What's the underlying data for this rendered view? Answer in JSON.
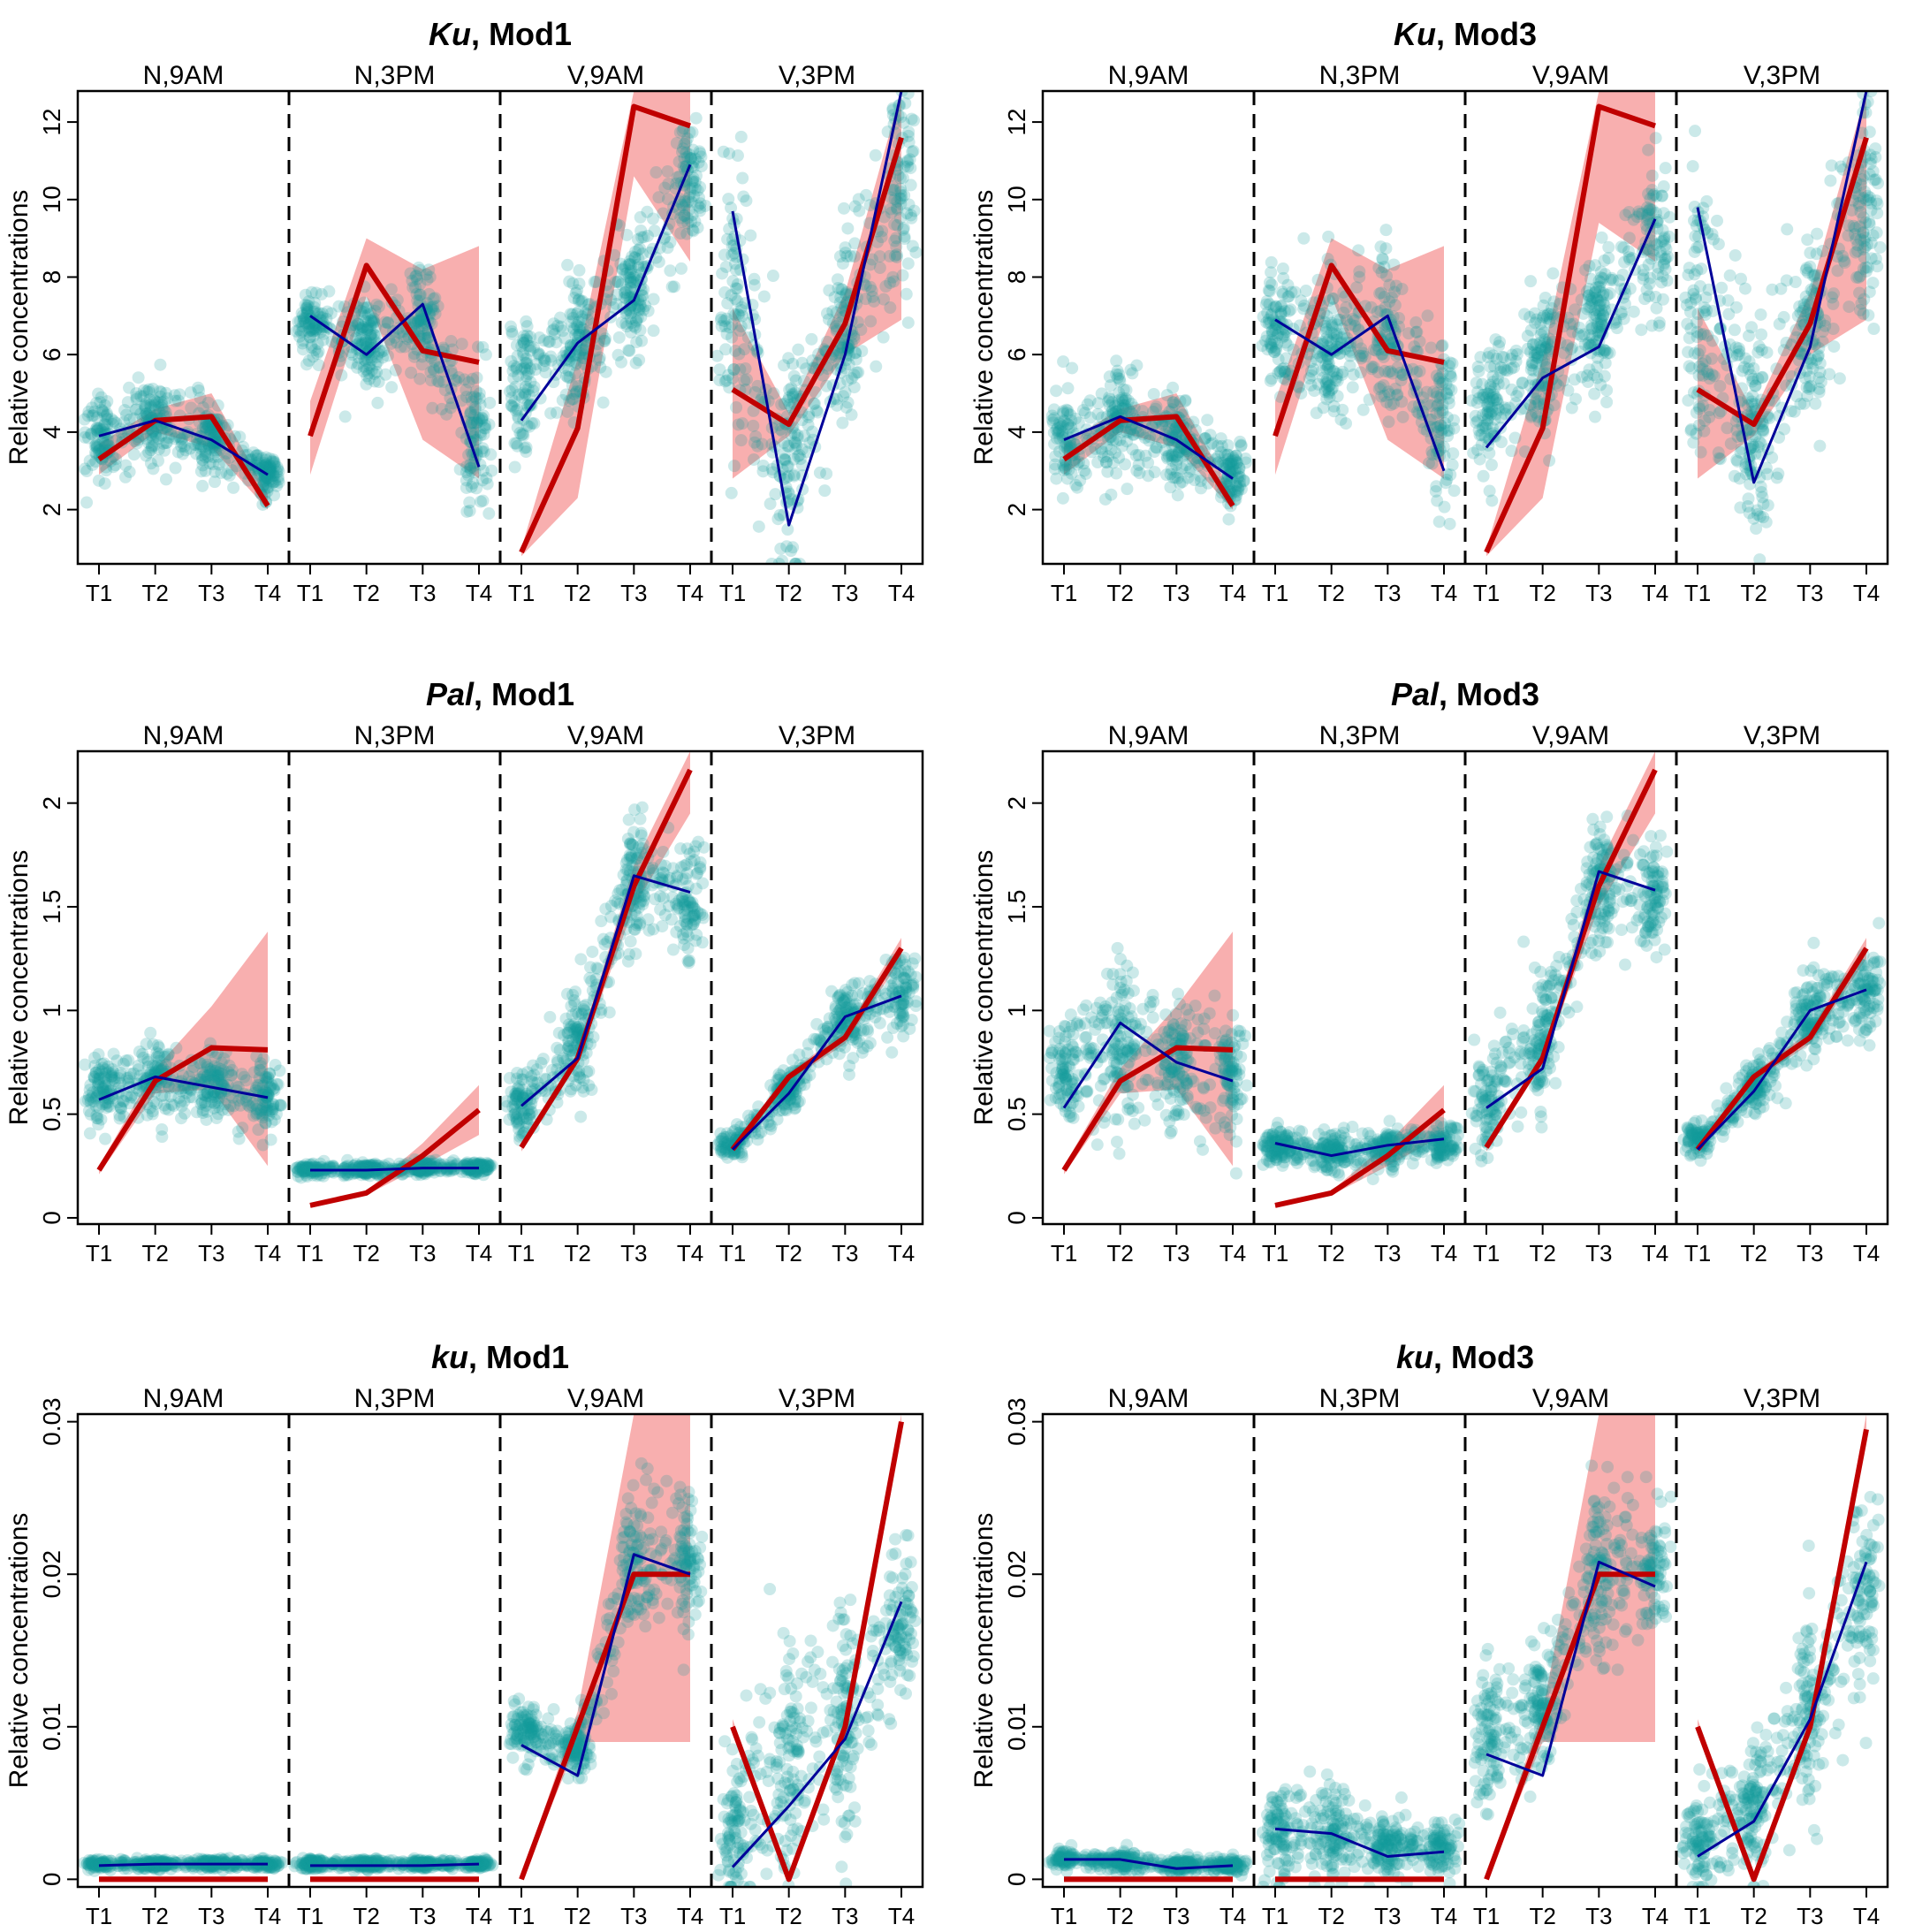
{
  "figure": {
    "colors": {
      "observed": "#c00000",
      "band": "#f7a1a1",
      "model": "#000099",
      "points": "#139a9a"
    },
    "panel_labels": [
      "N,9AM",
      "N,3PM",
      "V,9AM",
      "V,3PM"
    ],
    "tick_labels_x": [
      "T1",
      "T2",
      "T3",
      "T4"
    ]
  },
  "chart_data": [
    {
      "type": "line",
      "gene": "Ku",
      "title_rest": ", Mod1",
      "ylabel": "Relative concentrations",
      "ylim": [
        0.6,
        12.8
      ],
      "yticks": [
        2,
        4,
        6,
        8,
        10,
        12
      ],
      "ytick_labels": [
        "2",
        "4",
        "6",
        "8",
        "10",
        "12"
      ],
      "panels": [
        {
          "label": "N,9AM",
          "observed": [
            3.3,
            4.3,
            4.4,
            2.1
          ],
          "band_lower": [
            2.9,
            4.0,
            3.6,
            2.0
          ],
          "band_upper": [
            3.7,
            4.6,
            5.0,
            2.4
          ],
          "model": [
            3.9,
            4.3,
            3.8,
            2.9
          ],
          "points_center": [
            3.9,
            4.3,
            3.8,
            2.9
          ],
          "points_spread": [
            0.7,
            0.7,
            0.6,
            0.4
          ]
        },
        {
          "label": "N,3PM",
          "observed": [
            3.9,
            8.3,
            6.1,
            5.8
          ],
          "band_lower": [
            2.9,
            7.5,
            3.8,
            2.8
          ],
          "band_upper": [
            4.8,
            9.0,
            8.2,
            8.8
          ],
          "model": [
            7.0,
            6.0,
            7.3,
            3.1
          ],
          "points_center": [
            6.8,
            6.2,
            6.8,
            3.8
          ],
          "points_spread": [
            0.6,
            0.8,
            1.0,
            1.3
          ]
        },
        {
          "label": "V,9AM",
          "observed": [
            0.9,
            4.1,
            12.4,
            11.9
          ],
          "band_lower": [
            0.8,
            2.3,
            10.6,
            8.4
          ],
          "band_upper": [
            1.0,
            5.9,
            12.8,
            12.8
          ],
          "model": [
            4.3,
            6.3,
            7.4,
            10.9
          ],
          "points_center": [
            5.2,
            6.4,
            7.6,
            10.4
          ],
          "points_spread": [
            1.1,
            1.2,
            1.1,
            1.1
          ]
        },
        {
          "label": "V,3PM",
          "observed": [
            5.1,
            4.2,
            6.8,
            11.6
          ],
          "band_lower": [
            2.8,
            3.9,
            6.0,
            6.9
          ],
          "band_upper": [
            7.2,
            4.5,
            7.6,
            12.8
          ],
          "model": [
            9.7,
            1.6,
            6.0,
            12.8
          ],
          "points_center": [
            7.5,
            3.5,
            6.6,
            10.2
          ],
          "points_spread": [
            2.5,
            2.0,
            1.5,
            1.8
          ]
        }
      ]
    },
    {
      "type": "line",
      "gene": "Ku",
      "title_rest": ", Mod3",
      "ylabel": "Relative concentrations",
      "ylim": [
        0.6,
        12.8
      ],
      "yticks": [
        2,
        4,
        6,
        8,
        10,
        12
      ],
      "ytick_labels": [
        "2",
        "4",
        "6",
        "8",
        "10",
        "12"
      ],
      "panels": [
        {
          "label": "N,9AM",
          "observed": [
            3.3,
            4.3,
            4.4,
            2.1
          ],
          "band_lower": [
            2.9,
            4.0,
            3.6,
            2.0
          ],
          "band_upper": [
            3.7,
            4.6,
            5.0,
            2.4
          ],
          "model": [
            3.8,
            4.4,
            3.8,
            2.8
          ],
          "points_center": [
            3.8,
            4.3,
            3.8,
            2.9
          ],
          "points_spread": [
            0.8,
            0.8,
            0.7,
            0.5
          ]
        },
        {
          "label": "N,3PM",
          "observed": [
            3.9,
            8.3,
            6.1,
            5.8
          ],
          "band_lower": [
            2.9,
            7.5,
            3.8,
            2.8
          ],
          "band_upper": [
            4.8,
            9.0,
            8.2,
            8.8
          ],
          "model": [
            6.9,
            6.0,
            7.0,
            3.0
          ],
          "points_center": [
            6.8,
            6.2,
            6.5,
            4.2
          ],
          "points_spread": [
            1.0,
            1.2,
            1.3,
            1.5
          ]
        },
        {
          "label": "V,9AM",
          "observed": [
            0.9,
            4.1,
            12.4,
            11.9
          ],
          "band_lower": [
            0.8,
            2.3,
            9.4,
            8.4
          ],
          "band_upper": [
            1.0,
            5.9,
            12.8,
            12.8
          ],
          "model": [
            3.6,
            5.4,
            6.2,
            9.5
          ],
          "points_center": [
            4.5,
            5.8,
            6.8,
            9.0
          ],
          "points_spread": [
            1.0,
            1.2,
            1.2,
            1.3
          ]
        },
        {
          "label": "V,3PM",
          "observed": [
            5.1,
            4.2,
            6.8,
            11.6
          ],
          "band_lower": [
            2.8,
            3.9,
            6.0,
            6.9
          ],
          "band_upper": [
            7.2,
            4.5,
            7.6,
            12.8
          ],
          "model": [
            9.8,
            2.7,
            6.2,
            12.8
          ],
          "points_center": [
            7.0,
            4.0,
            6.5,
            9.8
          ],
          "points_spread": [
            2.5,
            1.8,
            1.5,
            1.8
          ]
        }
      ]
    },
    {
      "type": "line",
      "gene": "Pal",
      "title_rest": ", Mod1",
      "ylabel": "Relative concentrations",
      "ylim": [
        -0.03,
        2.25
      ],
      "yticks": [
        0,
        0.5,
        1,
        1.5,
        2
      ],
      "ytick_labels": [
        "0",
        "0.5",
        "1",
        "1.5",
        "2"
      ],
      "panels": [
        {
          "label": "N,9AM",
          "observed": [
            0.23,
            0.66,
            0.82,
            0.81
          ],
          "band_lower": [
            0.21,
            0.6,
            0.62,
            0.25
          ],
          "band_upper": [
            0.25,
            0.72,
            1.02,
            1.38
          ],
          "model": [
            0.57,
            0.68,
            0.63,
            0.58
          ],
          "points_center": [
            0.62,
            0.68,
            0.63,
            0.58
          ],
          "points_spread": [
            0.1,
            0.12,
            0.1,
            0.1
          ]
        },
        {
          "label": "N,3PM",
          "observed": [
            0.06,
            0.12,
            0.3,
            0.52
          ],
          "band_lower": [
            0.05,
            0.11,
            0.25,
            0.4
          ],
          "band_upper": [
            0.07,
            0.13,
            0.36,
            0.64
          ],
          "model": [
            0.23,
            0.23,
            0.24,
            0.24
          ],
          "points_center": [
            0.23,
            0.23,
            0.24,
            0.24
          ],
          "points_spread": [
            0.02,
            0.02,
            0.02,
            0.02
          ]
        },
        {
          "label": "V,9AM",
          "observed": [
            0.34,
            0.77,
            1.6,
            2.16
          ],
          "band_lower": [
            0.32,
            0.75,
            1.5,
            1.95
          ],
          "band_upper": [
            0.36,
            0.79,
            1.7,
            2.25
          ],
          "model": [
            0.54,
            0.77,
            1.65,
            1.57
          ],
          "points_center": [
            0.55,
            0.85,
            1.6,
            1.55
          ],
          "points_spread": [
            0.12,
            0.18,
            0.2,
            0.18
          ]
        },
        {
          "label": "V,3PM",
          "observed": [
            0.33,
            0.68,
            0.87,
            1.3
          ],
          "band_lower": [
            0.31,
            0.66,
            0.84,
            1.25
          ],
          "band_upper": [
            0.35,
            0.7,
            0.9,
            1.35
          ],
          "model": [
            0.33,
            0.6,
            0.97,
            1.07
          ],
          "points_center": [
            0.35,
            0.62,
            0.95,
            1.05
          ],
          "points_spread": [
            0.04,
            0.07,
            0.12,
            0.12
          ]
        }
      ]
    },
    {
      "type": "line",
      "gene": "Pal",
      "title_rest": ", Mod3",
      "ylabel": "Relative concentrations",
      "ylim": [
        -0.03,
        2.25
      ],
      "yticks": [
        0,
        0.5,
        1,
        1.5,
        2
      ],
      "ytick_labels": [
        "0",
        "0.5",
        "1",
        "1.5",
        "2"
      ],
      "panels": [
        {
          "label": "N,9AM",
          "observed": [
            0.23,
            0.66,
            0.82,
            0.81
          ],
          "band_lower": [
            0.21,
            0.6,
            0.62,
            0.25
          ],
          "band_upper": [
            0.25,
            0.72,
            1.02,
            1.38
          ],
          "model": [
            0.53,
            0.94,
            0.75,
            0.66
          ],
          "points_center": [
            0.7,
            0.85,
            0.75,
            0.7
          ],
          "points_spread": [
            0.18,
            0.25,
            0.22,
            0.2
          ]
        },
        {
          "label": "N,3PM",
          "observed": [
            0.06,
            0.12,
            0.3,
            0.52
          ],
          "band_lower": [
            0.05,
            0.11,
            0.25,
            0.4
          ],
          "band_upper": [
            0.07,
            0.13,
            0.36,
            0.64
          ],
          "model": [
            0.36,
            0.3,
            0.35,
            0.38
          ],
          "points_center": [
            0.35,
            0.32,
            0.34,
            0.36
          ],
          "points_spread": [
            0.06,
            0.06,
            0.06,
            0.06
          ]
        },
        {
          "label": "V,9AM",
          "observed": [
            0.34,
            0.77,
            1.6,
            2.16
          ],
          "band_lower": [
            0.32,
            0.75,
            1.5,
            1.95
          ],
          "band_upper": [
            0.36,
            0.79,
            1.7,
            2.25
          ],
          "model": [
            0.53,
            0.72,
            1.67,
            1.58
          ],
          "points_center": [
            0.55,
            0.85,
            1.6,
            1.55
          ],
          "points_spread": [
            0.18,
            0.2,
            0.2,
            0.18
          ]
        },
        {
          "label": "V,3PM",
          "observed": [
            0.33,
            0.68,
            0.87,
            1.3
          ],
          "band_lower": [
            0.31,
            0.66,
            0.84,
            1.25
          ],
          "band_upper": [
            0.35,
            0.7,
            0.9,
            1.35
          ],
          "model": [
            0.33,
            0.61,
            1.0,
            1.1
          ],
          "points_center": [
            0.38,
            0.62,
            0.98,
            1.1
          ],
          "points_spread": [
            0.05,
            0.07,
            0.12,
            0.14
          ]
        }
      ]
    },
    {
      "type": "line",
      "gene": "ku",
      "title_rest": ", Mod1",
      "ylabel": "Relative concentrations",
      "ylim": [
        -0.0005,
        0.0305
      ],
      "yticks": [
        0,
        0.01,
        0.02,
        0.03
      ],
      "ytick_labels": [
        "0",
        "0.01",
        "0.02",
        "0.03"
      ],
      "panels": [
        {
          "label": "N,9AM",
          "observed": [
            0,
            0,
            0,
            0
          ],
          "band_lower": [
            0,
            0,
            0,
            0
          ],
          "band_upper": [
            0.0002,
            0.0002,
            0.0002,
            0.0002
          ],
          "model": [
            0.0009,
            0.001,
            0.001,
            0.001
          ],
          "points_center": [
            0.001,
            0.001,
            0.001,
            0.001
          ],
          "points_spread": [
            0.0002,
            0.0002,
            0.0002,
            0.0002
          ]
        },
        {
          "label": "N,3PM",
          "observed": [
            0,
            0,
            0,
            0
          ],
          "band_lower": [
            0,
            0,
            0,
            0
          ],
          "band_upper": [
            0.0002,
            0.0002,
            0.0002,
            0.0002
          ],
          "model": [
            0.0009,
            0.0009,
            0.0009,
            0.001
          ],
          "points_center": [
            0.001,
            0.001,
            0.001,
            0.001
          ],
          "points_spread": [
            0.0002,
            0.0002,
            0.0002,
            0.0002
          ]
        },
        {
          "label": "V,9AM",
          "observed": [
            0,
            0.01,
            0.02,
            0.02
          ],
          "band_lower": [
            0,
            0.009,
            0.009,
            0.009
          ],
          "band_upper": [
            0.0002,
            0.011,
            0.0305,
            0.0305
          ],
          "model": [
            0.0088,
            0.0068,
            0.0213,
            0.02
          ],
          "points_center": [
            0.0098,
            0.0085,
            0.021,
            0.021
          ],
          "points_spread": [
            0.0012,
            0.0012,
            0.0035,
            0.003
          ]
        },
        {
          "label": "V,3PM",
          "observed": [
            0.01,
            0,
            0.01,
            0.03
          ],
          "band_lower": [
            0.0095,
            0,
            0.0095,
            0.0295
          ],
          "band_upper": [
            0.0105,
            0.0002,
            0.0105,
            0.0305
          ],
          "model": [
            0.0008,
            0.0048,
            0.0092,
            0.0182
          ],
          "points_center": [
            0.003,
            0.0075,
            0.01,
            0.017
          ],
          "points_spread": [
            0.0035,
            0.0055,
            0.005,
            0.003
          ]
        }
      ]
    },
    {
      "type": "line",
      "gene": "ku",
      "title_rest": ", Mod3",
      "ylabel": "Relative concentrations",
      "ylim": [
        -0.0005,
        0.0305
      ],
      "yticks": [
        0,
        0.01,
        0.02,
        0.03
      ],
      "ytick_labels": [
        "0",
        "0.01",
        "0.02",
        "0.03"
      ],
      "panels": [
        {
          "label": "N,9AM",
          "observed": [
            0,
            0,
            0,
            0
          ],
          "band_lower": [
            0,
            0,
            0,
            0
          ],
          "band_upper": [
            0.0002,
            0.0002,
            0.0002,
            0.0002
          ],
          "model": [
            0.0013,
            0.0013,
            0.0007,
            0.0009
          ],
          "points_center": [
            0.0013,
            0.0012,
            0.0009,
            0.0009
          ],
          "points_spread": [
            0.0004,
            0.0004,
            0.0003,
            0.0003
          ]
        },
        {
          "label": "N,3PM",
          "observed": [
            0,
            0,
            0,
            0
          ],
          "band_lower": [
            0,
            0,
            0,
            0
          ],
          "band_upper": [
            0.0002,
            0.0002,
            0.0002,
            0.0002
          ],
          "model": [
            0.0033,
            0.003,
            0.0015,
            0.0018
          ],
          "points_center": [
            0.0035,
            0.003,
            0.0022,
            0.0022
          ],
          "points_spread": [
            0.0025,
            0.002,
            0.0012,
            0.0012
          ]
        },
        {
          "label": "V,9AM",
          "observed": [
            0,
            0.01,
            0.02,
            0.02
          ],
          "band_lower": [
            0,
            0.009,
            0.009,
            0.009
          ],
          "band_upper": [
            0.0002,
            0.011,
            0.0305,
            0.0305
          ],
          "model": [
            0.0082,
            0.0068,
            0.0208,
            0.0192
          ],
          "points_center": [
            0.009,
            0.011,
            0.02,
            0.02
          ],
          "points_spread": [
            0.003,
            0.003,
            0.004,
            0.003
          ]
        },
        {
          "label": "V,3PM",
          "observed": [
            0.01,
            0,
            0.01,
            0.0295
          ],
          "band_lower": [
            0.0095,
            0,
            0.0095,
            0.029
          ],
          "band_upper": [
            0.0105,
            0.0002,
            0.0105,
            0.0305
          ],
          "model": [
            0.0015,
            0.0038,
            0.0105,
            0.0208
          ],
          "points_center": [
            0.0025,
            0.005,
            0.011,
            0.019
          ],
          "points_spread": [
            0.002,
            0.003,
            0.004,
            0.004
          ]
        }
      ]
    }
  ]
}
